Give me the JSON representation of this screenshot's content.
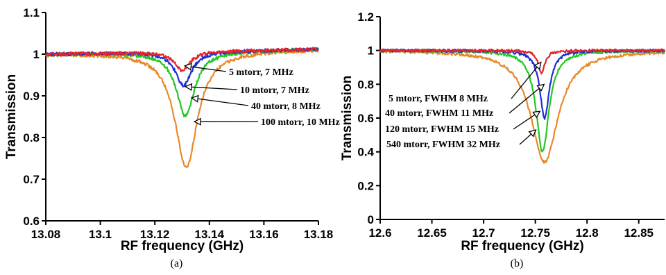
{
  "chart_data": [
    {
      "type": "line",
      "caption": "(a)",
      "xlabel": "RF frequency (GHz)",
      "ylabel": "Transmission",
      "xlim": [
        13.08,
        13.18
      ],
      "ylim": [
        0.6,
        1.1
      ],
      "xticks": [
        "13.08",
        "13.1",
        "13.12",
        "13.14",
        "13.16",
        "13.18"
      ],
      "yticks": [
        "0.6",
        "0.7",
        "0.8",
        "0.9",
        "1",
        "1.1"
      ],
      "grid": false,
      "series": [
        {
          "color": "#e8892b",
          "center": 13.1315,
          "min": 0.722,
          "fwhm_ghz": 0.01,
          "noise": 0.004
        },
        {
          "color": "#22c722",
          "center": 13.1312,
          "min": 0.845,
          "fwhm_ghz": 0.008,
          "noise": 0.004
        },
        {
          "color": "#1f2fd6",
          "center": 13.1305,
          "min": 0.918,
          "fwhm_ghz": 0.007,
          "noise": 0.004
        },
        {
          "color": "#e3262b",
          "center": 13.13,
          "min": 0.955,
          "fwhm_ghz": 0.007,
          "noise": 0.004
        }
      ],
      "annotations": [
        {
          "text": "5 mtorr, 7 MHz",
          "x": 13.131,
          "y": 0.972
        },
        {
          "text": "10 mtorr, 7 MHz",
          "x": 13.1312,
          "y": 0.922
        },
        {
          "text": "40 mtorr, 8 MHz",
          "x": 13.1335,
          "y": 0.895
        },
        {
          "text": "100 mtorr, 10 MHz",
          "x": 13.1345,
          "y": 0.838
        }
      ]
    },
    {
      "type": "line",
      "caption": "(b)",
      "xlabel": "RF frequency (GHz)",
      "ylabel": "Transmission",
      "xlim": [
        12.6,
        12.875
      ],
      "ylim": [
        0,
        1.2
      ],
      "xticks": [
        "12.6",
        "12.65",
        "12.7",
        "12.75",
        "12.8",
        "12.85"
      ],
      "yticks": [
        "0",
        "0.2",
        "0.4",
        "0.6",
        "0.8",
        "1",
        "1.2"
      ],
      "grid": false,
      "series": [
        {
          "color": "#e8892b",
          "center": 12.759,
          "min": 0.34,
          "fwhm_ghz": 0.032,
          "noise": 0.008
        },
        {
          "color": "#22c722",
          "center": 12.757,
          "min": 0.4,
          "fwhm_ghz": 0.015,
          "noise": 0.008
        },
        {
          "color": "#1f2fd6",
          "center": 12.759,
          "min": 0.6,
          "fwhm_ghz": 0.011,
          "noise": 0.008
        },
        {
          "color": "#e3262b",
          "center": 12.756,
          "min": 0.87,
          "fwhm_ghz": 0.008,
          "noise": 0.008
        }
      ],
      "annotations": [
        {
          "text": "5 mtorr, FWHM 8 MHz",
          "x": 12.7555,
          "y": 0.93
        },
        {
          "text": "40 mtorr, FWHM 11 MHz",
          "x": 12.7585,
          "y": 0.8
        },
        {
          "text": "120 mtorr, FWHM 15 MHz",
          "x": 12.7545,
          "y": 0.64
        },
        {
          "text": "540 mtorr, FWHM 32 MHz",
          "x": 12.7505,
          "y": 0.53
        }
      ]
    }
  ]
}
